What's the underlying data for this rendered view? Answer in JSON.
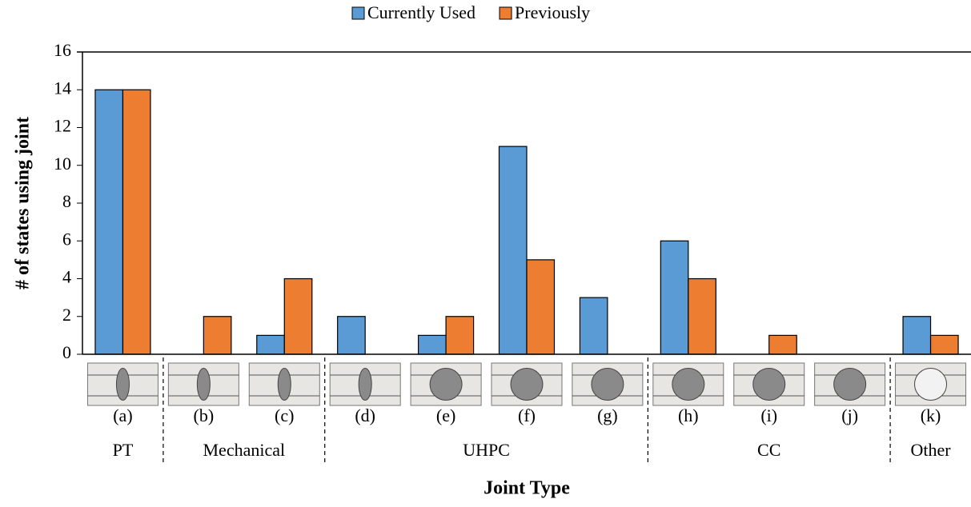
{
  "chart_data": {
    "type": "bar",
    "x_label": "Joint Type",
    "y_label": "# of states using joint",
    "categories": [
      "(a)",
      "(b)",
      "(c)",
      "(d)",
      "(e)",
      "(f)",
      "(g)",
      "(h)",
      "(i)",
      "(j)",
      "(k)"
    ],
    "groups": [
      {
        "name": "PT",
        "count": 1
      },
      {
        "name": "Mechanical",
        "count": 2
      },
      {
        "name": "UHPC",
        "count": 4
      },
      {
        "name": "CC",
        "count": 3
      },
      {
        "name": "Other",
        "count": 1
      }
    ],
    "series": [
      {
        "name": "Currently Used",
        "color": "#5b9bd5",
        "values": [
          14,
          0,
          1,
          2,
          1,
          11,
          3,
          6,
          0,
          0,
          2
        ]
      },
      {
        "name": "Previously",
        "color": "#ed7d31",
        "values": [
          14,
          2,
          4,
          0,
          2,
          5,
          0,
          4,
          1,
          0,
          1
        ]
      }
    ],
    "ylim": [
      0,
      16
    ],
    "yticks": [
      0,
      2,
      4,
      6,
      8,
      10,
      12,
      14,
      16
    ],
    "legend": "top"
  }
}
